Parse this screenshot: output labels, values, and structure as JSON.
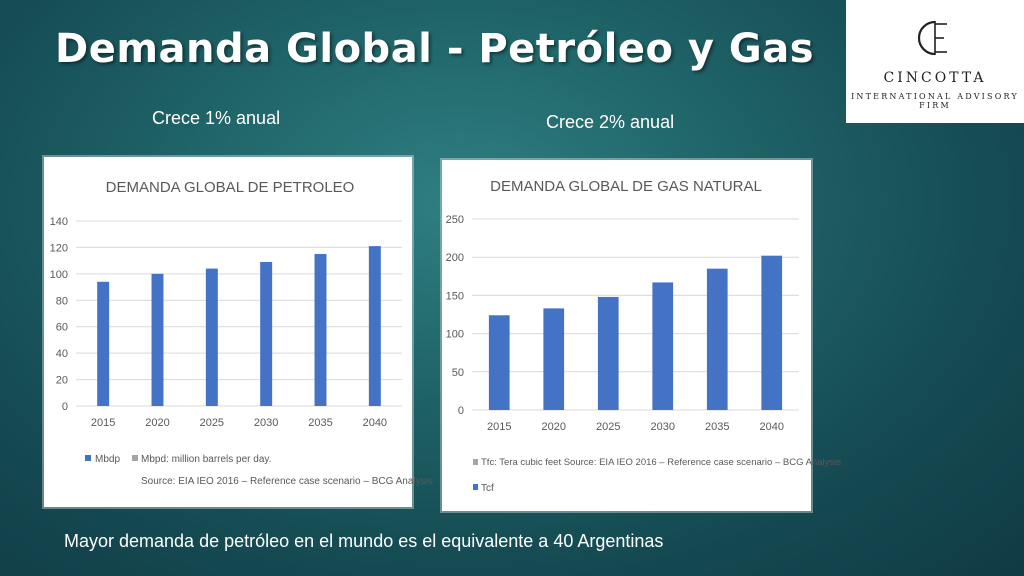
{
  "slide": {
    "title": "Demanda Global - Petróleo y Gas",
    "footer": "Mayor demanda de petróleo en el mundo es el equivalente a 40 Argentinas"
  },
  "logo": {
    "name": "CINCOTTA",
    "tagline": "INTERNATIONAL ADVISORY FIRM",
    "monogram": "CE"
  },
  "captions": {
    "oil": "Crece 1% anual",
    "gas": "Crece 2% anual"
  },
  "colors": {
    "bar": "#4472c4",
    "legend_gray": "#a5a5a5"
  },
  "chart_data": [
    {
      "type": "bar",
      "title": "DEMANDA GLOBAL DE PETROLEO",
      "categories": [
        "2015",
        "2020",
        "2025",
        "2030",
        "2035",
        "2040"
      ],
      "series": [
        {
          "name": "Mbdp",
          "values": [
            94,
            100,
            104,
            109,
            115,
            121
          ]
        }
      ],
      "yticks": [
        "0",
        "20",
        "40",
        "60",
        "80",
        "100",
        "120",
        "140"
      ],
      "ylim": [
        0,
        140
      ],
      "grid": true,
      "legend": [
        "Mbdp",
        "Mbpd: million barrels per day."
      ],
      "source": "Source: EIA IEO 2016 – Reference case scenario – BCG Analysis"
    },
    {
      "type": "bar",
      "title": "DEMANDA GLOBAL DE GAS NATURAL",
      "categories": [
        "2015",
        "2020",
        "2025",
        "2030",
        "2035",
        "2040"
      ],
      "series": [
        {
          "name": "Tcf",
          "values": [
            124,
            133,
            148,
            167,
            185,
            202
          ]
        }
      ],
      "yticks": [
        "0",
        "50",
        "100",
        "150",
        "200",
        "250"
      ],
      "ylim": [
        0,
        250
      ],
      "grid": true,
      "legend": [
        "Tfc: Tera cubic feet Source: EIA IEO 2016 – Reference case scenario – BCG Analysis",
        "Tcf"
      ]
    }
  ]
}
